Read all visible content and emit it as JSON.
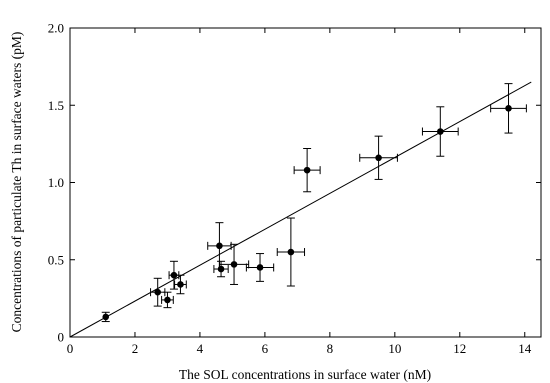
{
  "chart_data": {
    "type": "scatter",
    "title": "",
    "xlabel": "The SOL concentrations in surface water  (nM)",
    "ylabel": "Concentrations of particulate Th in surface waters  (pM)",
    "xlim": [
      0,
      14.5
    ],
    "ylim": [
      0,
      2.0
    ],
    "x_ticks": [
      0,
      2,
      4,
      6,
      8,
      10,
      12,
      14
    ],
    "y_ticks": [
      0,
      0.5,
      1.0,
      1.5,
      2.0
    ],
    "x_tick_labels": [
      "0",
      "2",
      "4",
      "6",
      "8",
      "10",
      "12",
      "14"
    ],
    "y_tick_labels": [
      "0",
      "0.5",
      "1.0",
      "1.5",
      "2.0"
    ],
    "grid": false,
    "marker_color": "#000000",
    "points": [
      {
        "x": 1.1,
        "y": 0.13,
        "xerr": 0.0,
        "yerr": 0.03
      },
      {
        "x": 2.7,
        "y": 0.29,
        "xerr": 0.22,
        "yerr": 0.09
      },
      {
        "x": 3.0,
        "y": 0.24,
        "xerr": 0.18,
        "yerr": 0.05
      },
      {
        "x": 3.2,
        "y": 0.4,
        "xerr": 0.15,
        "yerr": 0.09
      },
      {
        "x": 3.4,
        "y": 0.34,
        "xerr": 0.18,
        "yerr": 0.06
      },
      {
        "x": 4.6,
        "y": 0.59,
        "xerr": 0.36,
        "yerr": 0.15
      },
      {
        "x": 4.65,
        "y": 0.44,
        "xerr": 0.22,
        "yerr": 0.05
      },
      {
        "x": 5.05,
        "y": 0.47,
        "xerr": 0.45,
        "yerr": 0.13
      },
      {
        "x": 5.85,
        "y": 0.45,
        "xerr": 0.42,
        "yerr": 0.09
      },
      {
        "x": 6.8,
        "y": 0.55,
        "xerr": 0.42,
        "yerr": 0.22
      },
      {
        "x": 7.3,
        "y": 1.08,
        "xerr": 0.4,
        "yerr": 0.14
      },
      {
        "x": 9.5,
        "y": 1.16,
        "xerr": 0.58,
        "yerr": 0.14
      },
      {
        "x": 11.4,
        "y": 1.33,
        "xerr": 0.55,
        "yerr": 0.16
      },
      {
        "x": 13.5,
        "y": 1.48,
        "xerr": 0.55,
        "yerr": 0.16
      }
    ],
    "fit_line": {
      "x": [
        0,
        14.2
      ],
      "y": [
        0,
        1.65
      ]
    }
  }
}
